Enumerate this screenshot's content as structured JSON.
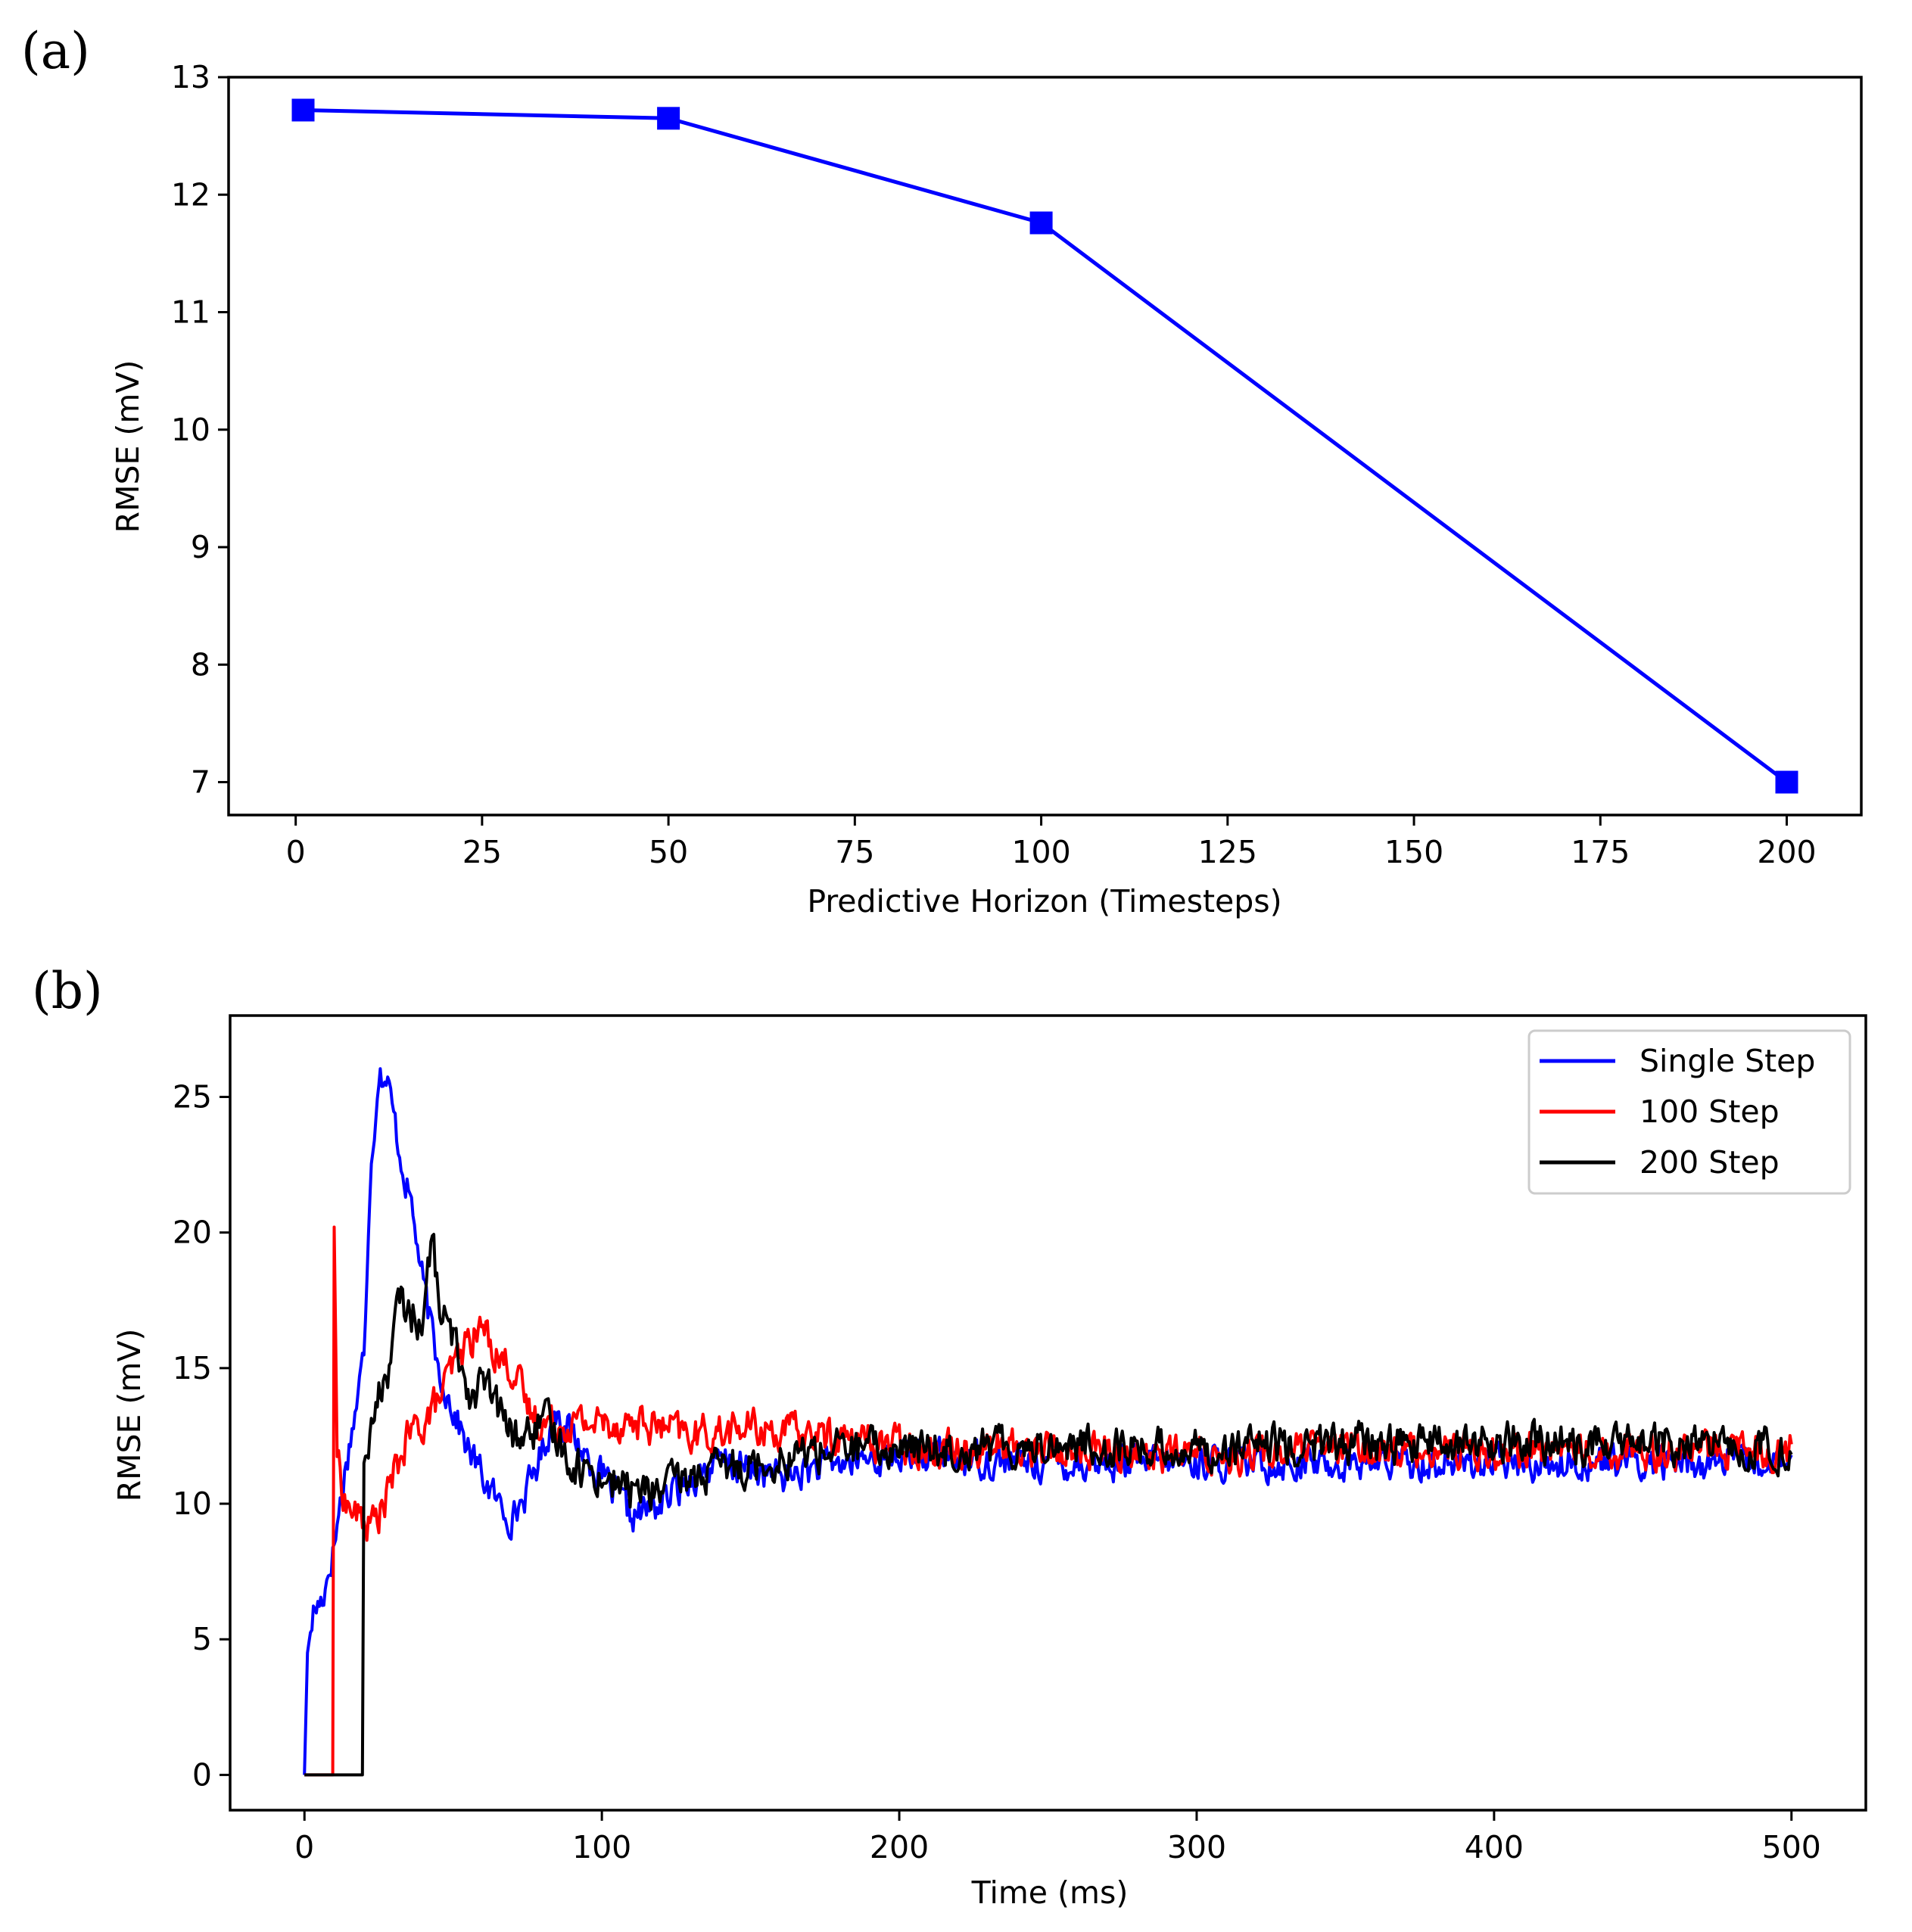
{
  "chart_data": [
    {
      "panel_label": "(a)",
      "type": "line",
      "title": "",
      "xlabel": "Predictive Horizon (Timesteps)",
      "ylabel": "RMSE (mV)",
      "xlim": [
        -9,
        210
      ],
      "ylim": [
        6.72,
        13.0
      ],
      "xticks": [
        0,
        25,
        50,
        75,
        100,
        125,
        150,
        175,
        200
      ],
      "xtick_labels": [
        "0",
        "25",
        "50",
        "75",
        "100",
        "125",
        "150",
        "175",
        "200"
      ],
      "yticks": [
        7,
        8,
        9,
        10,
        11,
        12,
        13
      ],
      "ytick_labels": [
        "7",
        "8",
        "9",
        "10",
        "11",
        "12",
        "13"
      ],
      "grid": false,
      "series": [
        {
          "name": "RMSE",
          "color": "#0000ff",
          "marker": "square",
          "x": [
            1,
            50,
            100,
            200
          ],
          "y": [
            12.72,
            12.65,
            11.76,
            7.0
          ]
        }
      ]
    },
    {
      "panel_label": "(b)",
      "type": "line",
      "title": "",
      "xlabel": "Time (ms)",
      "ylabel": "RMSE (mV)",
      "xlim": [
        -25,
        525
      ],
      "ylim": [
        -1.3,
        28.0
      ],
      "xticks": [
        0,
        100,
        200,
        300,
        400,
        500
      ],
      "xtick_labels": [
        "0",
        "100",
        "200",
        "300",
        "400",
        "500"
      ],
      "yticks": [
        0,
        5,
        10,
        15,
        20,
        25
      ],
      "ytick_labels": [
        "0",
        "5",
        "10",
        "15",
        "20",
        "25"
      ],
      "grid": false,
      "legend": {
        "placement": "top-right",
        "entries": [
          "Single Step",
          "100 Step",
          "200 Step"
        ]
      },
      "series": [
        {
          "name": "Single Step",
          "color": "#0000ff",
          "x": [
            0,
            1,
            3,
            6,
            10,
            14,
            18,
            20,
            22,
            25,
            28,
            32,
            36,
            40,
            45,
            50,
            55,
            60,
            65,
            70,
            75,
            80,
            85,
            90,
            100,
            110,
            120,
            130,
            140,
            160,
            180,
            200,
            250,
            300,
            350,
            400,
            450,
            500
          ],
          "y": [
            0,
            4.5,
            6.0,
            6.5,
            8.5,
            11.5,
            14.0,
            15.5,
            22.0,
            26.0,
            25.5,
            23.0,
            21.0,
            18.0,
            15.0,
            13.5,
            12.0,
            11.0,
            10.0,
            9.5,
            10.5,
            12.0,
            13.5,
            12.5,
            11.0,
            9.5,
            10.0,
            11.0,
            11.5,
            11.0,
            11.5,
            11.8,
            11.5,
            11.5,
            11.5,
            11.5,
            11.5,
            11.5
          ],
          "noise": 0.55
        },
        {
          "name": "100 Step",
          "color": "#ff0000",
          "x": [
            0,
            9.5,
            10,
            11,
            12,
            14,
            18,
            22,
            26,
            30,
            35,
            40,
            45,
            50,
            55,
            60,
            65,
            70,
            75,
            80,
            90,
            100,
            110,
            120,
            130,
            150,
            175,
            200,
            250,
            300,
            350,
            400,
            450,
            500
          ],
          "y": [
            0,
            0,
            20.2,
            12.0,
            11.0,
            10.0,
            9.5,
            9.2,
            9.8,
            11.0,
            12.5,
            13.0,
            13.8,
            15.0,
            16.0,
            16.5,
            15.5,
            15.0,
            13.5,
            13.0,
            13.0,
            13.0,
            13.0,
            12.8,
            12.5,
            12.8,
            12.5,
            12.2,
            12.0,
            11.8,
            12.0,
            12.0,
            12.0,
            12.0
          ],
          "noise": 0.6
        },
        {
          "name": "200 Step",
          "color": "#000000",
          "x": [
            0,
            19.5,
            20,
            22,
            25,
            28,
            32,
            36,
            40,
            43,
            45,
            48,
            52,
            56,
            60,
            65,
            70,
            75,
            80,
            85,
            90,
            100,
            110,
            120,
            130,
            150,
            175,
            200,
            250,
            300,
            350,
            400,
            450,
            500
          ],
          "y": [
            0,
            0,
            11.5,
            12.5,
            14.0,
            15.0,
            17.5,
            17.0,
            16.8,
            20.0,
            17.5,
            16.5,
            15.5,
            14.0,
            14.5,
            13.5,
            12.5,
            12.5,
            13.0,
            12.5,
            11.5,
            11.0,
            10.5,
            10.5,
            11.0,
            11.5,
            12.0,
            12.0,
            12.2,
            12.0,
            12.2,
            12.2,
            12.2,
            12.0
          ],
          "noise": 0.65
        }
      ]
    }
  ]
}
